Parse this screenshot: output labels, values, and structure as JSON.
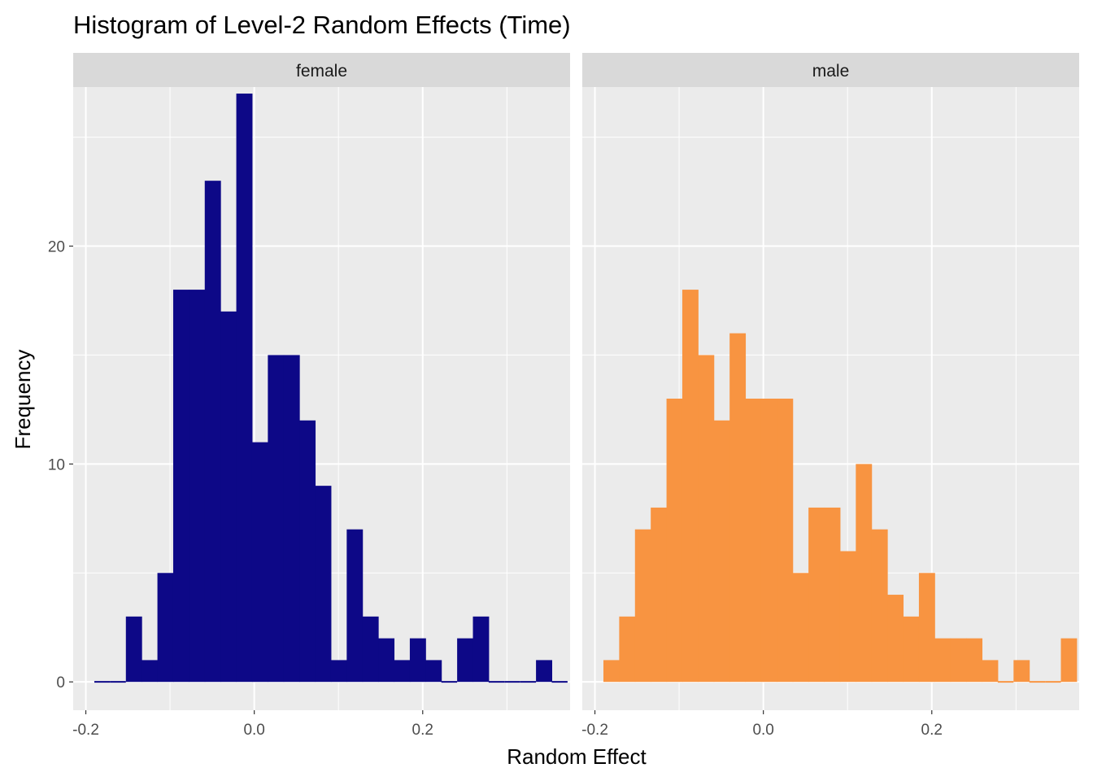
{
  "chart_data": {
    "type": "bar",
    "title": "Histogram of Level-2 Random Effects (Time)",
    "xlabel": "Random Effect",
    "ylabel": "Frequency",
    "xlim": [
      -0.215,
      0.375
    ],
    "ylim": [
      -1.3,
      27.3
    ],
    "x_ticks": [
      -0.2,
      0.0,
      0.2
    ],
    "x_tick_labels": [
      "-0.2",
      "0.0",
      "0.2"
    ],
    "y_ticks": [
      0,
      10,
      20
    ],
    "y_tick_labels": [
      "0",
      "10",
      "20"
    ],
    "bin_start": -0.1899,
    "bin_width": 0.01873,
    "grid": true,
    "legend": "none",
    "panels": [
      {
        "name": "female",
        "color": "#0D0887",
        "values": [
          0,
          0,
          3,
          1,
          5,
          18,
          18,
          23,
          17,
          27,
          11,
          15,
          15,
          12,
          9,
          1,
          7,
          3,
          2,
          1,
          2,
          1,
          0,
          2,
          3,
          0,
          0,
          0,
          1,
          0
        ]
      },
      {
        "name": "male",
        "color": "#F89441",
        "values": [
          1,
          3,
          7,
          8,
          13,
          18,
          15,
          12,
          16,
          13,
          13,
          13,
          5,
          8,
          8,
          6,
          10,
          7,
          4,
          3,
          5,
          2,
          2,
          2,
          1,
          0,
          1,
          0,
          0,
          2
        ]
      }
    ]
  }
}
